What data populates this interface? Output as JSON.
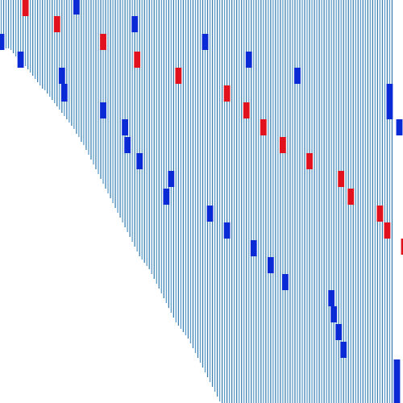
{
  "chart_data": {
    "type": "bar",
    "description_visible_text": "",
    "x": [
      0,
      1,
      2,
      3,
      4,
      5,
      6,
      7,
      8,
      9,
      10,
      11,
      12,
      13,
      14,
      15,
      16,
      17,
      18,
      19,
      20,
      21,
      22,
      23,
      24,
      25,
      26,
      27,
      28,
      29,
      30,
      31,
      32,
      33,
      34,
      35,
      36,
      37,
      38,
      39,
      40,
      41,
      42,
      43,
      44,
      45,
      46,
      47,
      48,
      49,
      50,
      51,
      52,
      53,
      54,
      55,
      56,
      57,
      58,
      59,
      60,
      61,
      62,
      63,
      64,
      65,
      66,
      67,
      68,
      69,
      70,
      71,
      72,
      73,
      74,
      75,
      76,
      77,
      78,
      79,
      80,
      81,
      82,
      83,
      84,
      85,
      86,
      87,
      88,
      89,
      90,
      91,
      92,
      93,
      94,
      95,
      96,
      97,
      98,
      99,
      100,
      101,
      102,
      103,
      104,
      105,
      106,
      107,
      108,
      109,
      110,
      111,
      112,
      113,
      114,
      115,
      116,
      117,
      118,
      119,
      120,
      121,
      122,
      123,
      124,
      125,
      126,
      127,
      128,
      129,
      130,
      131,
      132,
      133,
      134,
      135,
      136,
      137,
      138,
      139,
      140,
      141,
      142,
      143,
      144,
      145,
      146,
      147,
      148,
      149,
      150,
      151,
      152,
      153,
      154,
      155,
      156,
      157,
      158,
      159,
      160,
      161,
      162
    ],
    "series": [
      {
        "kind": "range",
        "low": [
          58,
          58,
          60,
          60,
          62,
          66,
          70,
          72,
          74,
          78,
          82,
          86,
          90,
          94,
          98,
          102,
          106,
          110,
          112,
          116,
          120,
          124,
          128,
          132,
          136,
          140,
          144,
          148,
          152,
          156,
          160,
          166,
          170,
          176,
          180,
          186,
          192,
          198,
          204,
          210,
          216,
          222,
          228,
          234,
          240,
          246,
          252,
          258,
          264,
          270,
          276,
          282,
          288,
          294,
          300,
          306,
          312,
          318,
          322,
          326,
          330,
          334,
          340,
          346,
          352,
          358,
          364,
          370,
          376,
          382,
          388,
          394,
          400,
          404,
          408,
          412,
          416,
          420,
          426,
          432,
          438,
          444,
          450,
          456,
          462,
          468,
          474,
          480,
          486,
          492,
          498,
          500,
          500,
          500,
          500,
          500,
          500,
          500,
          500,
          500,
          500,
          500,
          500,
          500,
          500,
          500,
          500,
          500,
          500,
          500,
          500,
          500,
          500,
          500,
          500,
          500,
          500,
          500,
          500,
          500,
          500,
          500,
          500,
          500,
          500,
          500,
          500,
          500,
          500,
          500,
          500,
          500,
          500,
          500,
          500,
          500,
          500,
          500,
          500,
          500,
          500,
          500,
          500,
          500,
          500,
          500,
          500,
          500,
          500,
          500,
          500,
          500,
          500,
          500,
          500,
          500,
          500,
          500,
          500,
          500,
          500,
          500
        ],
        "high": [
          0,
          0,
          0,
          0,
          0,
          0,
          0,
          0,
          0,
          0,
          0,
          0,
          0,
          0,
          0,
          0,
          0,
          0,
          0,
          0,
          0,
          0,
          0,
          0,
          0,
          0,
          0,
          0,
          0,
          0,
          0,
          0,
          0,
          0,
          0,
          0,
          0,
          0,
          0,
          0,
          0,
          0,
          0,
          0,
          0,
          0,
          0,
          0,
          0,
          0,
          0,
          0,
          0,
          0,
          0,
          0,
          0,
          0,
          0,
          0,
          0,
          0,
          0,
          0,
          0,
          0,
          0,
          0,
          0,
          0,
          0,
          0,
          0,
          0,
          0,
          0,
          0,
          0,
          0,
          0,
          0,
          0,
          0,
          0,
          0,
          0,
          0,
          0,
          0,
          0,
          0,
          0,
          0,
          0,
          0,
          0,
          0,
          0,
          0,
          0,
          0,
          0,
          0,
          0,
          0,
          0,
          0,
          0,
          0,
          0,
          0,
          0,
          0,
          0,
          0,
          0,
          0,
          0,
          0,
          0,
          0,
          0,
          0,
          0,
          0,
          0,
          0,
          0,
          0,
          0,
          0,
          0,
          0,
          0,
          0,
          0,
          0,
          0,
          0,
          0,
          0,
          0,
          0,
          0,
          0,
          0,
          0,
          0,
          0,
          0,
          0,
          0,
          0,
          0,
          0,
          0,
          0,
          0,
          0,
          0,
          0,
          0,
          0
        ]
      }
    ],
    "markers_blue": [
      {
        "x": 0,
        "y0": 42,
        "y1": 62
      },
      {
        "x": 8,
        "y0": 64,
        "y1": 84
      },
      {
        "x": 25,
        "y0": 84,
        "y1": 104
      },
      {
        "x": 26,
        "y0": 104,
        "y1": 126
      },
      {
        "x": 31,
        "y0": 0,
        "y1": 18
      },
      {
        "x": 42,
        "y0": 127,
        "y1": 147
      },
      {
        "x": 51,
        "y0": 148,
        "y1": 168
      },
      {
        "x": 52,
        "y0": 170,
        "y1": 190
      },
      {
        "x": 55,
        "y0": 20,
        "y1": 40
      },
      {
        "x": 57,
        "y0": 190,
        "y1": 210
      },
      {
        "x": 68,
        "y0": 234,
        "y1": 254
      },
      {
        "x": 70,
        "y0": 212,
        "y1": 232
      },
      {
        "x": 84,
        "y0": 42,
        "y1": 62
      },
      {
        "x": 86,
        "y0": 255,
        "y1": 275
      },
      {
        "x": 93,
        "y0": 276,
        "y1": 296
      },
      {
        "x": 102,
        "y0": 64,
        "y1": 84
      },
      {
        "x": 104,
        "y0": 298,
        "y1": 318
      },
      {
        "x": 111,
        "y0": 319,
        "y1": 339
      },
      {
        "x": 117,
        "y0": 340,
        "y1": 360
      },
      {
        "x": 122,
        "y0": 84,
        "y1": 104
      },
      {
        "x": 136,
        "y0": 360,
        "y1": 380
      },
      {
        "x": 137,
        "y0": 380,
        "y1": 400
      },
      {
        "x": 139,
        "y0": 402,
        "y1": 422
      },
      {
        "x": 141,
        "y0": 424,
        "y1": 444
      },
      {
        "x": 160,
        "y0": 104,
        "y1": 148
      },
      {
        "x": 164,
        "y0": 148,
        "y1": 168
      },
      {
        "x": 163,
        "y0": 446,
        "y1": 500
      }
    ],
    "markers_red": [
      {
        "x": 10,
        "y0": 0,
        "y1": 20
      },
      {
        "x": 23,
        "y0": 20,
        "y1": 40
      },
      {
        "x": 42,
        "y0": 42,
        "y1": 62
      },
      {
        "x": 56,
        "y0": 64,
        "y1": 84
      },
      {
        "x": 73,
        "y0": 84,
        "y1": 104
      },
      {
        "x": 93,
        "y0": 106,
        "y1": 126
      },
      {
        "x": 101,
        "y0": 127,
        "y1": 147
      },
      {
        "x": 108,
        "y0": 148,
        "y1": 168
      },
      {
        "x": 116,
        "y0": 170,
        "y1": 190
      },
      {
        "x": 127,
        "y0": 190,
        "y1": 210
      },
      {
        "x": 140,
        "y0": 212,
        "y1": 232
      },
      {
        "x": 144,
        "y0": 234,
        "y1": 254
      },
      {
        "x": 156,
        "y0": 255,
        "y1": 275
      },
      {
        "x": 159,
        "y0": 276,
        "y1": 296
      },
      {
        "x": 166,
        "y0": 296,
        "y1": 316
      }
    ],
    "xlim": [
      0,
      166
    ],
    "ylim": [
      0,
      500
    ],
    "grid": false,
    "legend": "none",
    "colors": {
      "bar": "#5b9bc8",
      "bar_dark": "#3b7fb0",
      "marker_blue": "#0a2ad6",
      "marker_red": "#e1121e",
      "background": "#ffffff"
    }
  }
}
